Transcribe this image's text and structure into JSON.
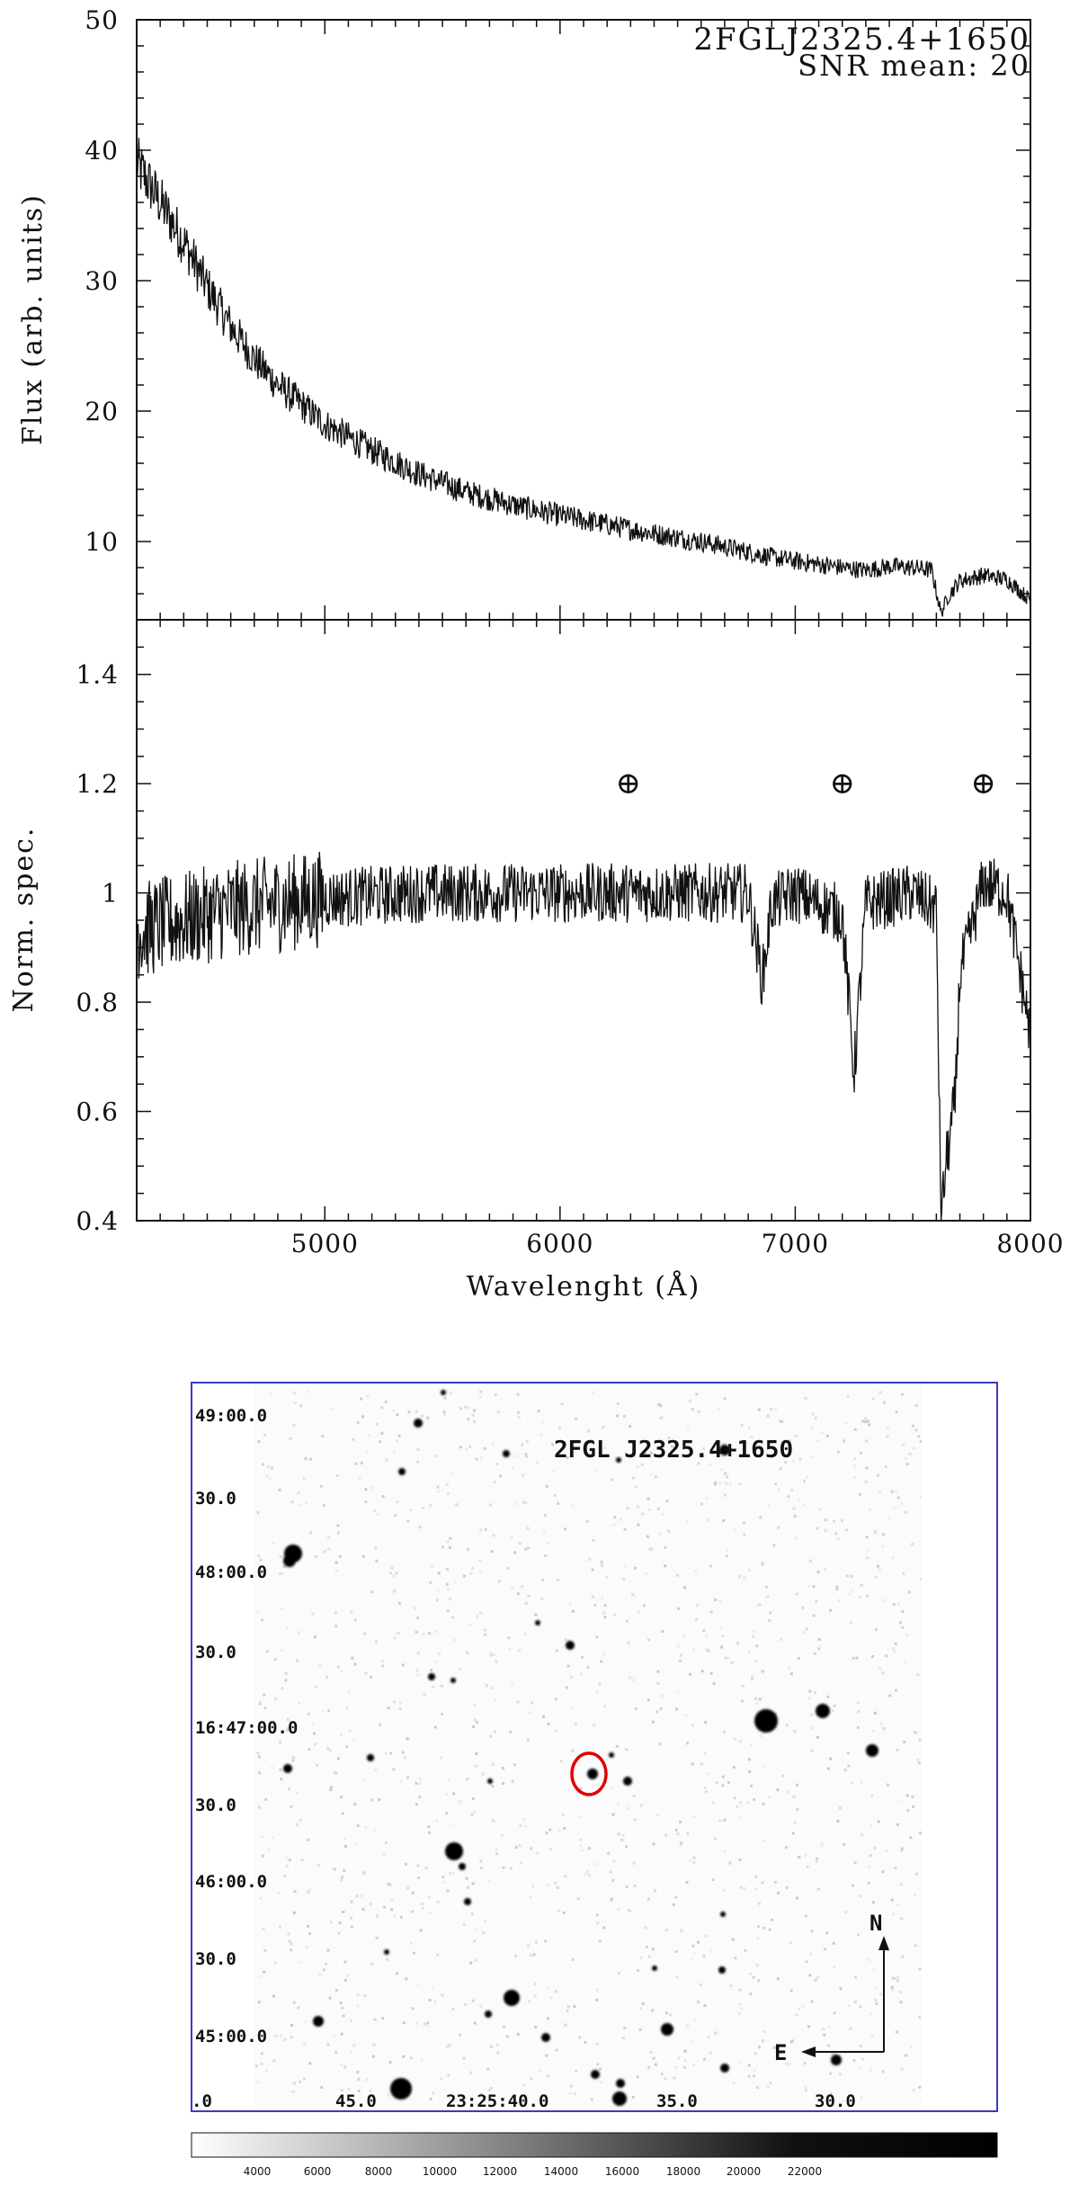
{
  "chart_data": [
    {
      "type": "line",
      "panel": "top",
      "annotations": [
        "2FGLJ2325.4+1650",
        "SNR mean: 20"
      ],
      "xlim": [
        4200,
        8000
      ],
      "ylim": [
        4,
        50
      ],
      "ylabel": "Flux (arb. units)",
      "yticks": [
        "10",
        "20",
        "30",
        "40",
        "50"
      ],
      "series": [
        {
          "x": [
            4200,
            4300,
            4400,
            4500,
            4600,
            4700,
            4800,
            4900,
            5000,
            5200,
            5400,
            5600,
            5800,
            6000,
            6200,
            6400,
            6600,
            6800,
            6900,
            7000,
            7200,
            7300,
            7400,
            7500,
            7580,
            7620,
            7650,
            7700,
            7800,
            7900,
            8000
          ],
          "y": [
            39,
            36,
            33,
            29.5,
            26.5,
            24,
            22,
            20.5,
            19,
            17,
            15.2,
            13.8,
            12.8,
            12,
            11.3,
            10.6,
            10,
            9.2,
            8.8,
            8.5,
            8,
            7.8,
            8.1,
            8,
            7.8,
            4.5,
            5.8,
            7,
            7.4,
            7.1,
            5.5
          ]
        }
      ]
    },
    {
      "type": "line",
      "panel": "bottom",
      "xlim": [
        4200,
        8000
      ],
      "ylim": [
        0.4,
        1.5
      ],
      "xlabel": "Wavelenght (Å)",
      "ylabel": "Norm. spec.",
      "xticks": [
        "5000",
        "6000",
        "7000",
        "8000"
      ],
      "yticks": [
        "0.4",
        "0.6",
        "0.8",
        "1",
        "1.2",
        "1.4"
      ],
      "telluric_markers": [
        {
          "x": 6290,
          "y": 1.2,
          "label": "⊕"
        },
        {
          "x": 7200,
          "y": 1.2,
          "label": "⊕"
        },
        {
          "x": 7800,
          "y": 1.2,
          "label": "⊕"
        }
      ],
      "series": [
        {
          "x": [
            4200,
            4400,
            4600,
            4800,
            5000,
            5400,
            5800,
            6000,
            6400,
            6800,
            6860,
            6900,
            7000,
            7200,
            7250,
            7300,
            7500,
            7600,
            7620,
            7640,
            7680,
            7700,
            7800,
            7900,
            8000
          ],
          "y": [
            0.93,
            0.95,
            0.97,
            0.98,
            0.99,
            1.0,
            1.0,
            1.0,
            1.0,
            1.0,
            0.84,
            0.98,
            1.0,
            0.96,
            0.67,
            0.98,
            1.0,
            0.97,
            0.4,
            0.5,
            0.62,
            0.85,
            1.02,
            1.0,
            0.74
          ]
        }
      ]
    }
  ],
  "finding_chart": {
    "title": "2FGL J2325.4+1650",
    "dec_labels": [
      "49:00.0",
      "30.0",
      "48:00.0",
      "30.0",
      "16:47:00.0",
      "30.0",
      "46:00.0",
      "30.0",
      "45:00.0"
    ],
    "ra_labels": [
      ".0",
      "45.0",
      "23:25:40.0",
      "35.0",
      "30.0"
    ],
    "compass": {
      "north": "N",
      "east": "E"
    },
    "target_marker_color": "#e00000",
    "border_color": "#3b3bbf",
    "colorbar_ticks": [
      "4000",
      "6000",
      "8000",
      "10000",
      "12000",
      "14000",
      "16000",
      "18000",
      "20000",
      "22000"
    ]
  }
}
